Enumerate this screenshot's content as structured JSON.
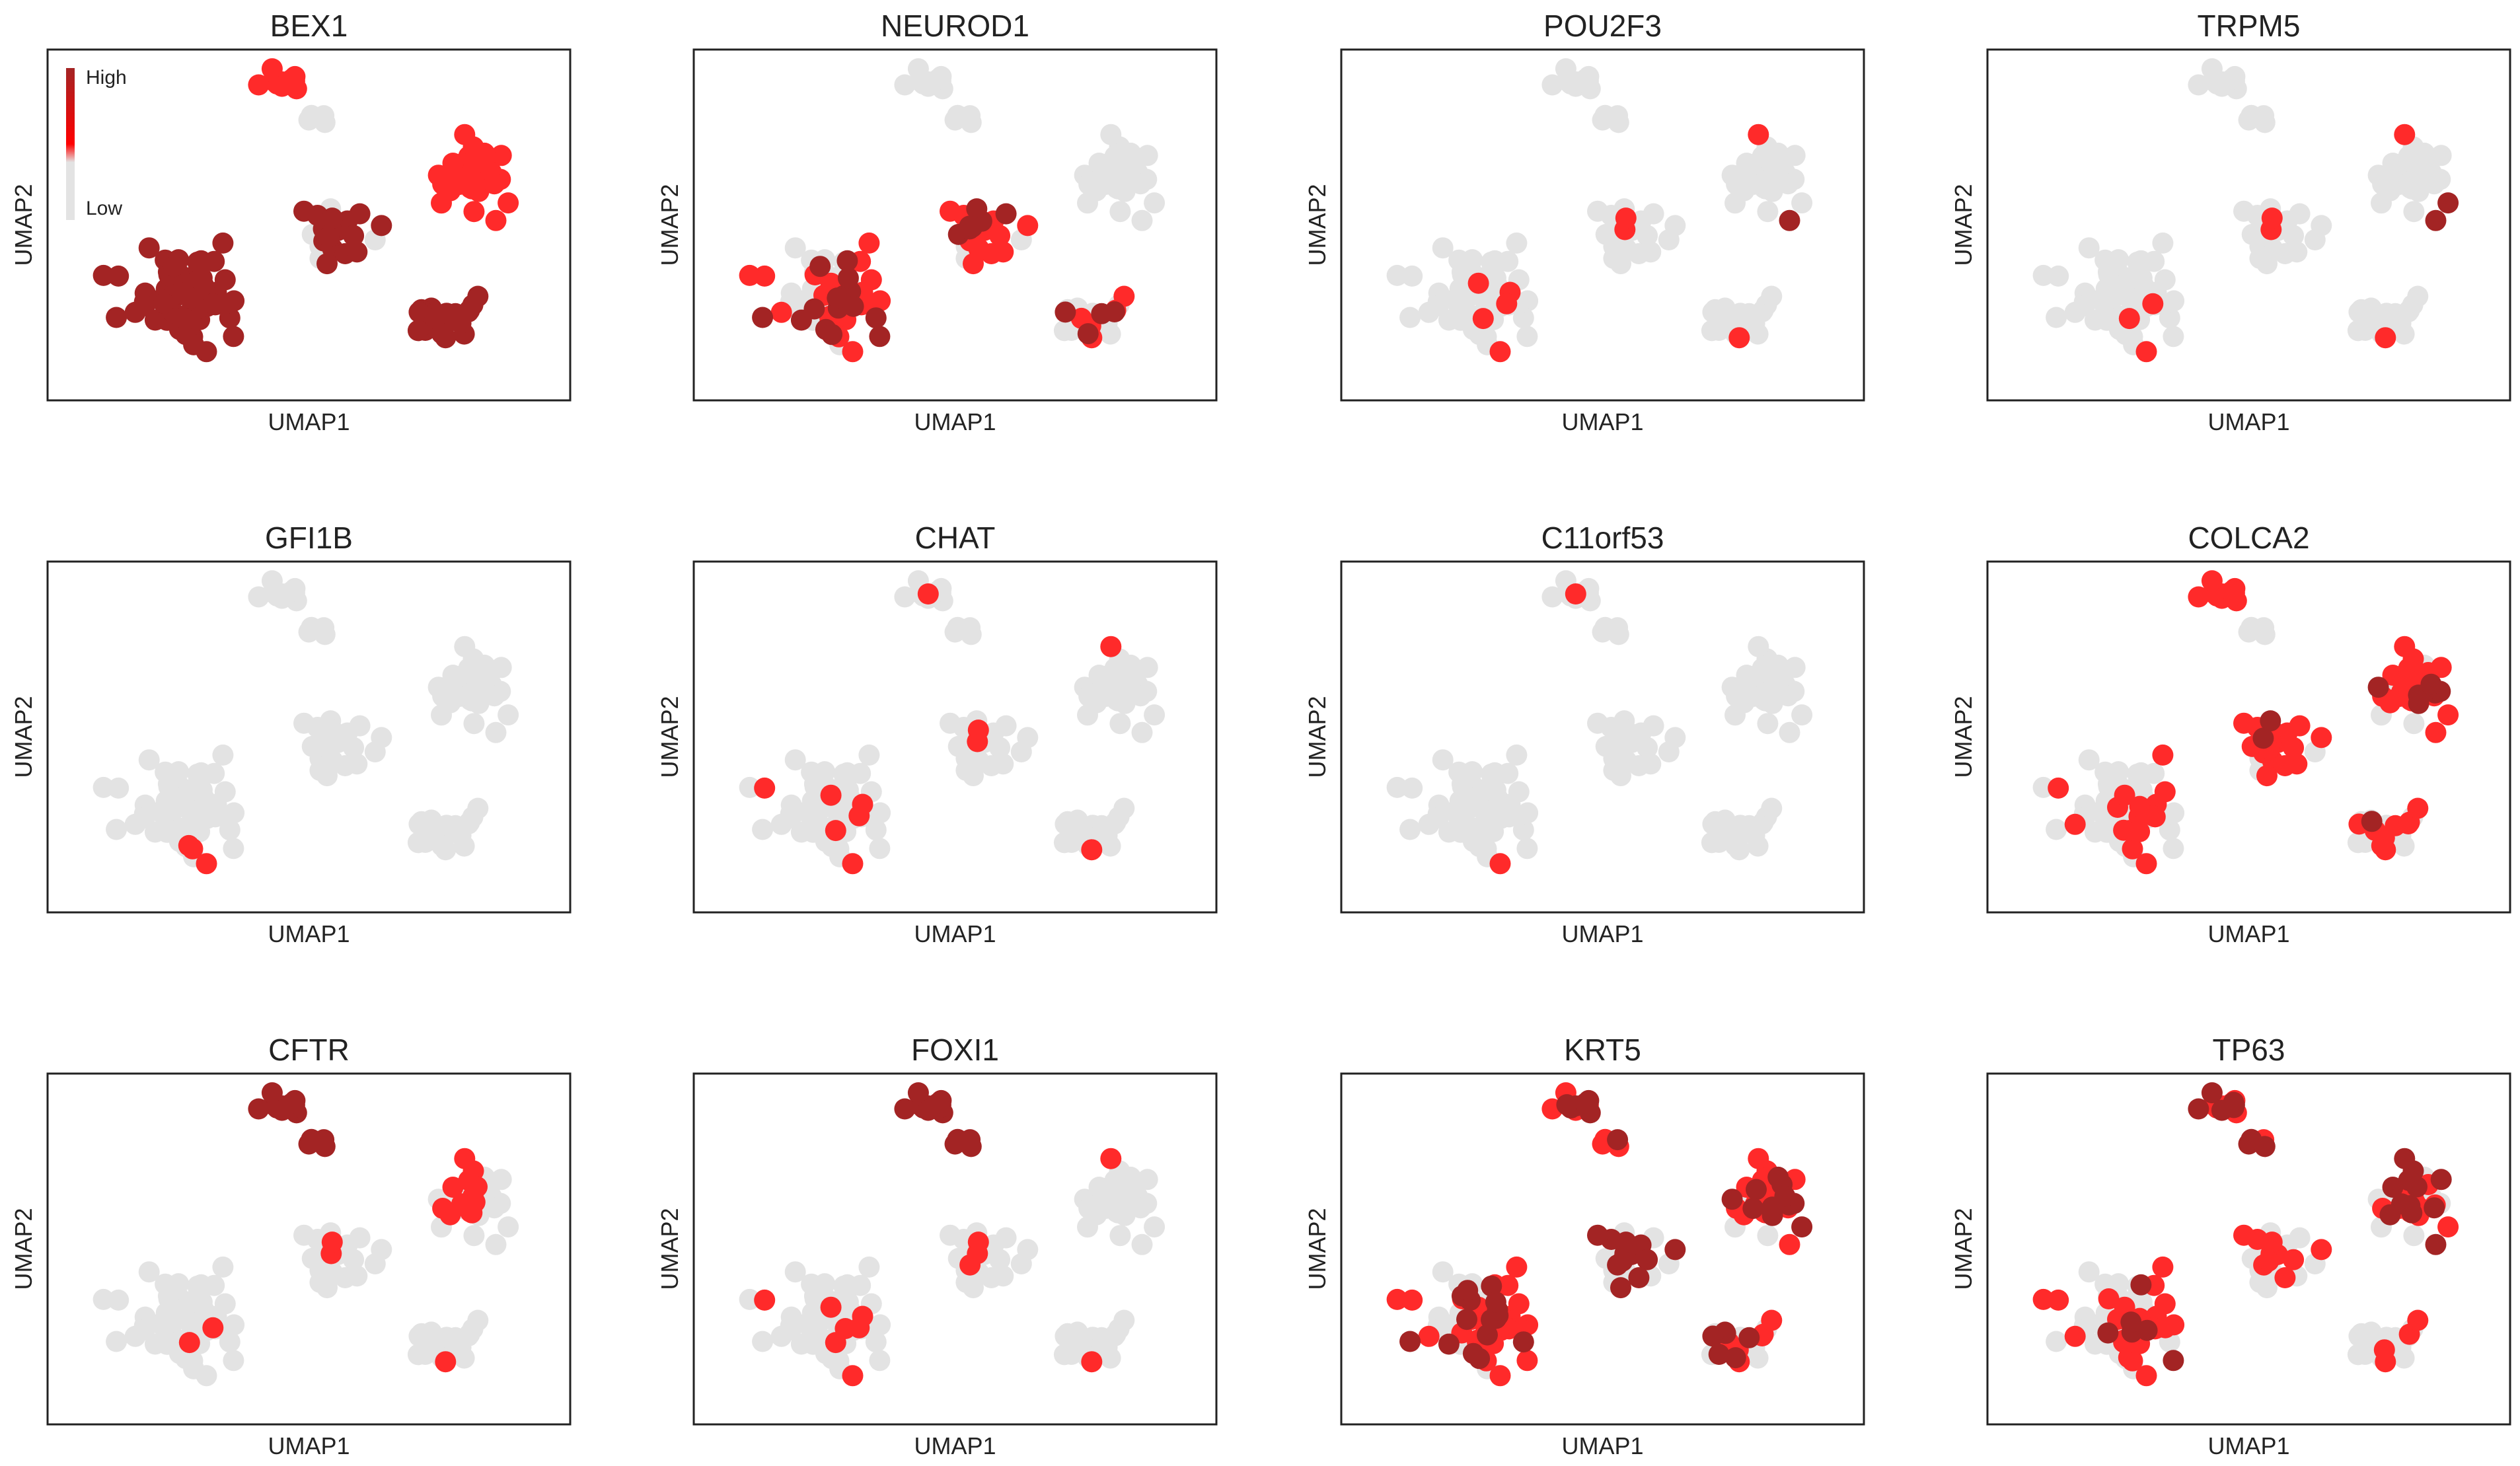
{
  "colors": {
    "low": "#e3e3e3",
    "mid": "#ff2a2a",
    "high": "#a32424"
  },
  "legend": {
    "high_label": "High",
    "low_label": "Low",
    "gradient": [
      "#a32424",
      "#ff0000",
      "#e3e3e3"
    ]
  },
  "chart_data": [
    {
      "type": "scatter",
      "title": "BEX1",
      "xlabel": "UMAP1",
      "ylabel": "UMAP2"
    },
    {
      "type": "scatter",
      "title": "NEUROD1",
      "xlabel": "UMAP1",
      "ylabel": "UMAP2"
    },
    {
      "type": "scatter",
      "title": "POU2F3",
      "xlabel": "UMAP1",
      "ylabel": "UMAP2"
    },
    {
      "type": "scatter",
      "title": "TRPM5",
      "xlabel": "UMAP1",
      "ylabel": "UMAP2"
    },
    {
      "type": "scatter",
      "title": "GFI1B",
      "xlabel": "UMAP1",
      "ylabel": "UMAP2"
    },
    {
      "type": "scatter",
      "title": "CHAT",
      "xlabel": "UMAP1",
      "ylabel": "UMAP2"
    },
    {
      "type": "scatter",
      "title": "C11orf53",
      "xlabel": "UMAP1",
      "ylabel": "UMAP2"
    },
    {
      "type": "scatter",
      "title": "COLCA2",
      "xlabel": "UMAP1",
      "ylabel": "UMAP2"
    },
    {
      "type": "scatter",
      "title": "CFTR",
      "xlabel": "UMAP1",
      "ylabel": "UMAP2"
    },
    {
      "type": "scatter",
      "title": "FOXI1",
      "xlabel": "UMAP1",
      "ylabel": "UMAP2"
    },
    {
      "type": "scatter",
      "title": "KRT5",
      "xlabel": "UMAP1",
      "ylabel": "UMAP2"
    },
    {
      "type": "scatter",
      "title": "TP63",
      "xlabel": "UMAP1",
      "ylabel": "UMAP2"
    }
  ]
}
